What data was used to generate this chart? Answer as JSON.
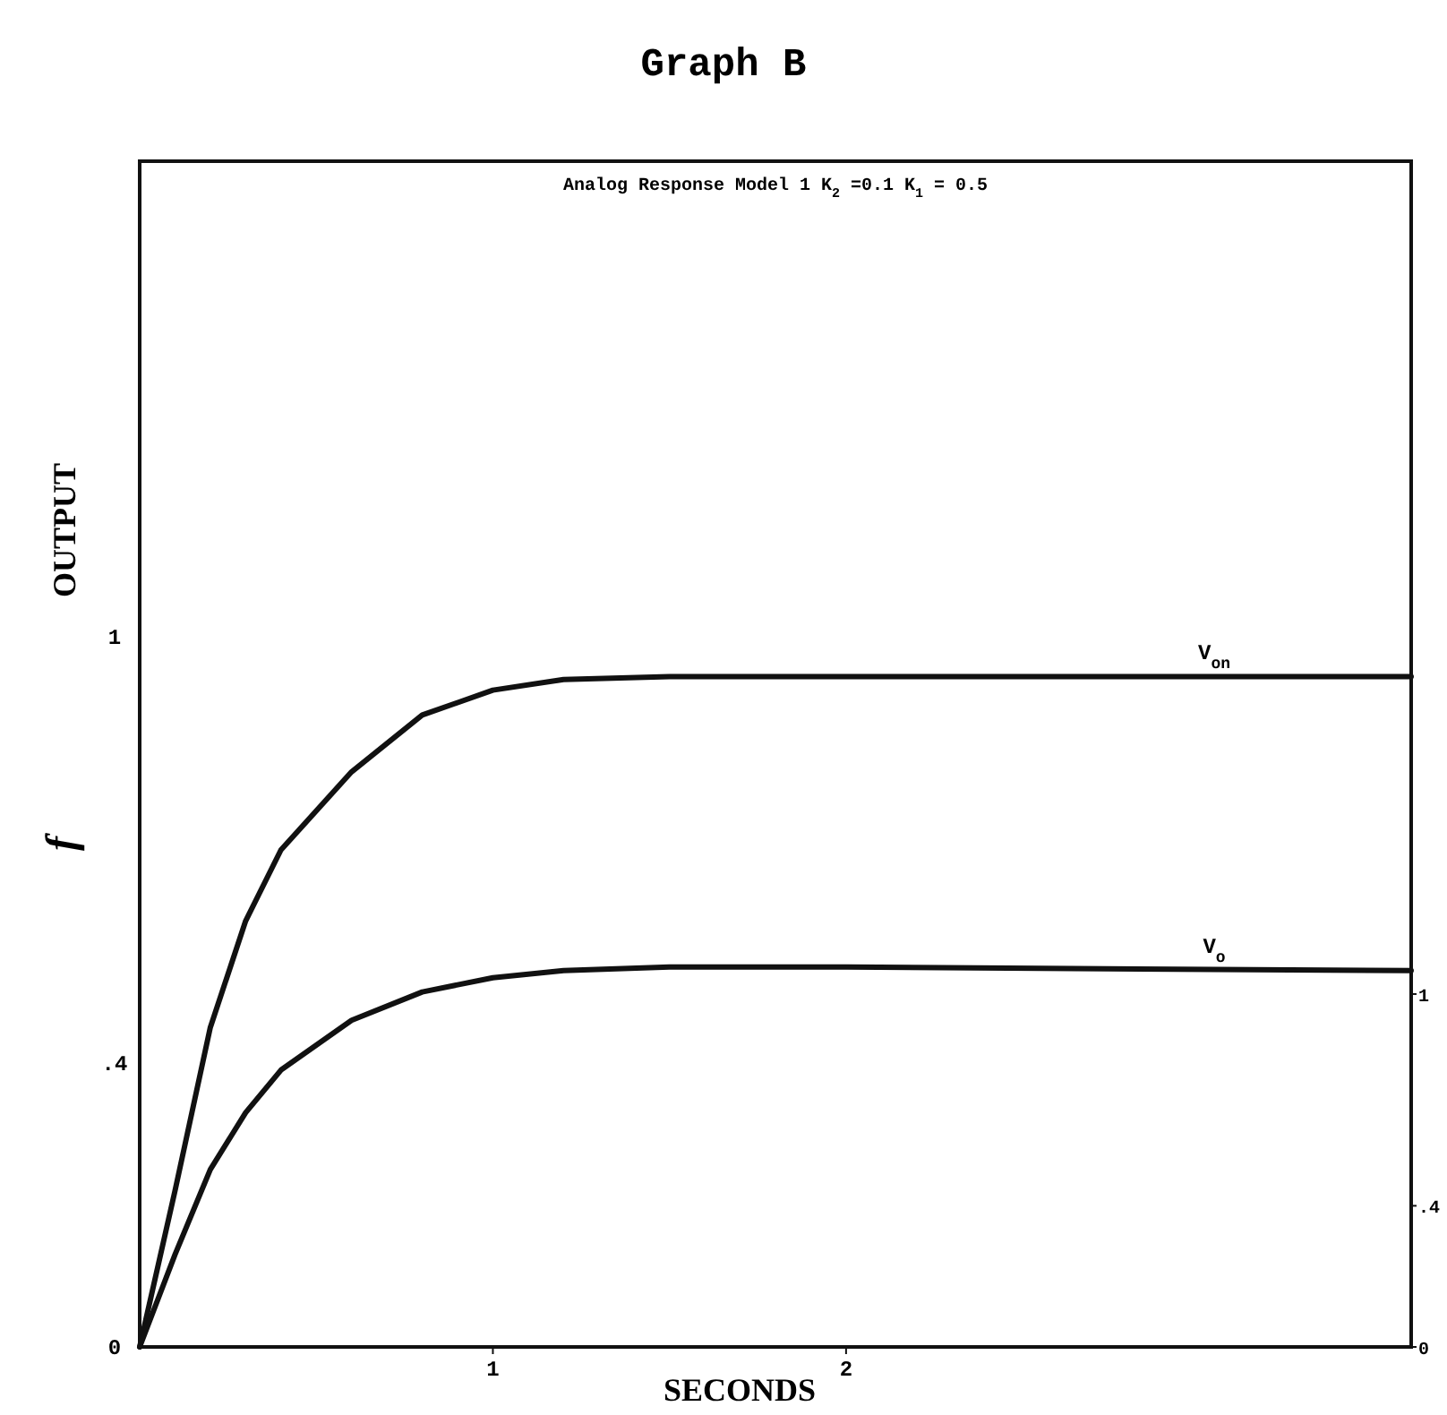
{
  "chart_data": {
    "type": "line",
    "title": "Graph B",
    "subtitle": "Analog Response Model 1 K$_{2}$ =0.1  K$_{1}$ = 0.5",
    "xlabel": "SECONDS",
    "ylabel": "OUTPUT",
    "annotations": [
      "f"
    ],
    "x": [
      0,
      0.1,
      0.2,
      0.3,
      0.4,
      0.6,
      0.8,
      1.0,
      1.2,
      1.5,
      2,
      3.6
    ],
    "series": [
      {
        "name": "V$_{on}$",
        "color": "#111111",
        "values": [
          0,
          0.22,
          0.45,
          0.6,
          0.7,
          0.81,
          0.89,
          0.925,
          0.94,
          0.944,
          0.944,
          0.944
        ]
      },
      {
        "name": "V$_{o}$",
        "color": "#111111",
        "values": [
          0,
          0.13,
          0.25,
          0.33,
          0.39,
          0.46,
          0.5,
          0.52,
          0.53,
          0.535,
          0.535,
          0.53
        ]
      }
    ],
    "xlim": [
      0,
      3.6
    ],
    "xticks": [
      1,
      2
    ],
    "ylim": [
      0,
      1.67
    ],
    "yticks": [
      0,
      {
        "value": 0.4,
        "label": ".4"
      },
      1
    ],
    "y2lim": [
      0,
      3.36
    ],
    "y2ticks": [
      0,
      {
        "value": 0.4,
        "label": ".4"
      },
      1
    ],
    "grid": false,
    "marker": "none",
    "line_style": "solid"
  }
}
